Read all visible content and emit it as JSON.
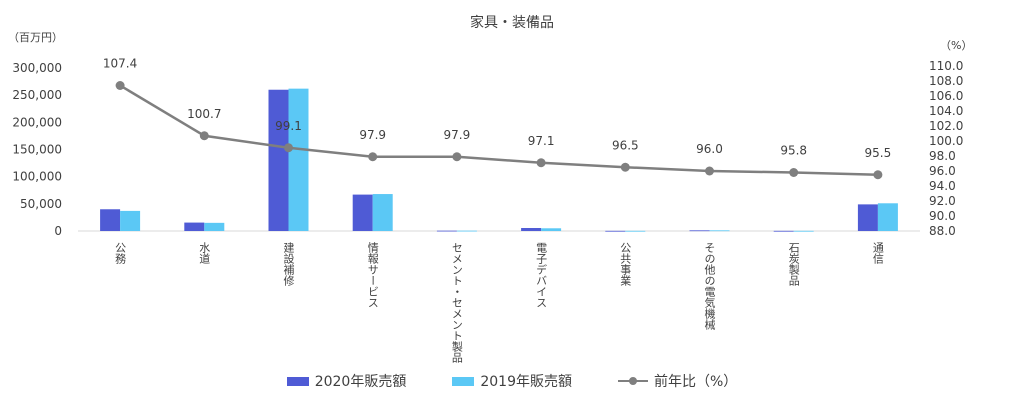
{
  "chart_data": {
    "type": "bar",
    "title": "家具・装備品",
    "y_left_unit": "（百万円）",
    "y_right_unit": "（%）",
    "y_left_range": [
      0,
      300000
    ],
    "y_left_ticks": [
      "0",
      "50,000",
      "100,000",
      "150,000",
      "200,000",
      "250,000",
      "300,000"
    ],
    "y_right_range": [
      88.0,
      110.0
    ],
    "y_right_ticks": [
      "88.0",
      "90.0",
      "92.0",
      "94.0",
      "96.0",
      "98.0",
      "100.0",
      "102.0",
      "104.0",
      "106.0",
      "108.0",
      "110.0"
    ],
    "categories": [
      "公務",
      "水道",
      "建設補修",
      "情報サービス",
      "セメント・セメント製品",
      "電子デバイス",
      "公共事業",
      "その他の電気機械",
      "石炭製品",
      "通信"
    ],
    "series": [
      {
        "name": "2020年販売額",
        "type": "bar",
        "axis": "left",
        "color": "#4f5bd5",
        "values": [
          40000,
          15500,
          260000,
          67000,
          600,
          5500,
          300,
          1200,
          300,
          49000
        ]
      },
      {
        "name": "2019年販売額",
        "type": "bar",
        "axis": "left",
        "color": "#5bc8f5",
        "values": [
          37000,
          15000,
          262000,
          68000,
          600,
          5000,
          300,
          1200,
          300,
          51000
        ]
      },
      {
        "name": "前年比（%）",
        "type": "line",
        "axis": "right",
        "color": "#7f7f7f",
        "values": [
          107.4,
          100.7,
          99.1,
          97.9,
          97.9,
          97.1,
          96.5,
          96.0,
          95.8,
          95.5
        ],
        "labels": [
          "107.4",
          "100.7",
          "99.1",
          "97.9",
          "97.9",
          "97.1",
          "96.5",
          "96.0",
          "95.8",
          "95.5"
        ]
      }
    ],
    "grid": false,
    "legend_position": "bottom"
  }
}
